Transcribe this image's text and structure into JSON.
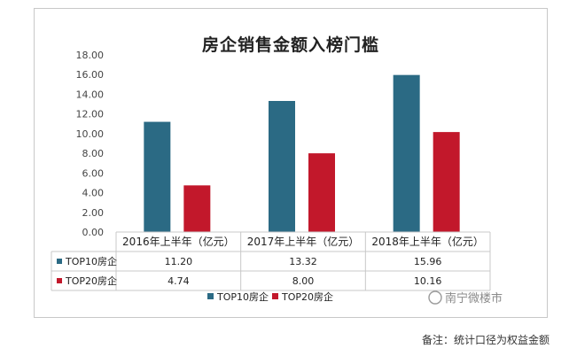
{
  "chart_data": {
    "type": "bar",
    "title": "房企销售金额入榜门槛",
    "categories": [
      "2016年上半年（亿元）",
      "2017年上半年（亿元）",
      "2018年上半年（亿元）"
    ],
    "series": [
      {
        "name": "TOP10房企",
        "values": [
          11.2,
          13.32,
          15.96
        ],
        "value_labels": [
          "11.20",
          "13.32",
          "15.96"
        ],
        "color": "#2b6a84"
      },
      {
        "name": "TOP20房企",
        "values": [
          4.74,
          8.0,
          10.16
        ],
        "value_labels": [
          "4.74",
          "8.00",
          "10.16"
        ],
        "color": "#c2182b"
      }
    ],
    "ylim": [
      0,
      18
    ],
    "y_ticks": [
      "0.00",
      "2.00",
      "4.00",
      "6.00",
      "8.00",
      "10.00",
      "12.00",
      "14.00",
      "16.00",
      "18.00"
    ],
    "data_table": true,
    "legend": "bottom"
  },
  "note": "备注：统计口径为权益金额",
  "watermark_text": "南宁微楼市"
}
